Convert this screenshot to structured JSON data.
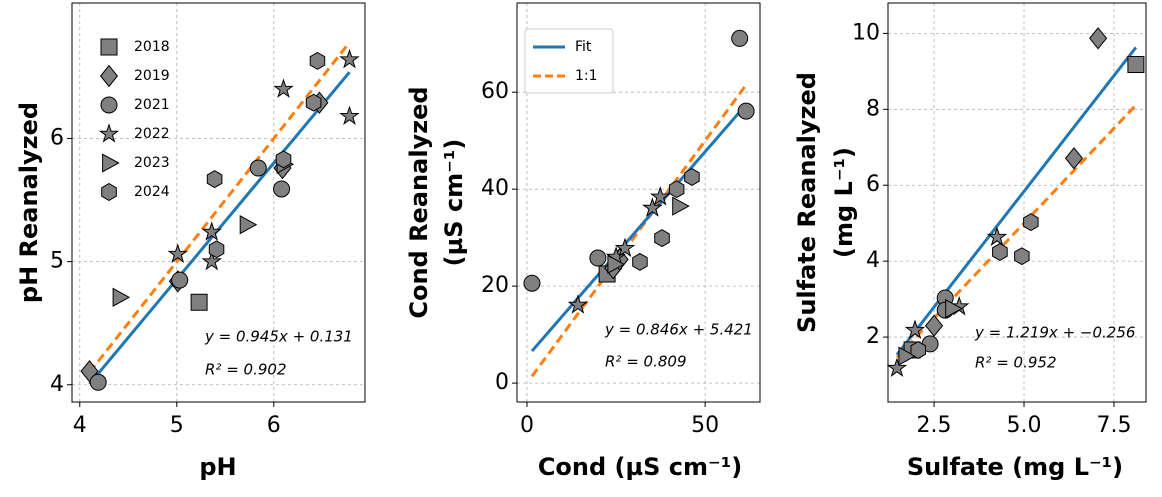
{
  "chart_data": [
    {
      "type": "scatter",
      "xlabel": "pH",
      "ylabel": [
        "pH Reanalyzed"
      ],
      "xlim": [
        3.92,
        6.94
      ],
      "ylim": [
        3.86,
        7.1
      ],
      "xticks": [
        4,
        5,
        6
      ],
      "yticks": [
        4,
        5,
        6
      ],
      "grid": true,
      "legend": "upper left",
      "marker_color": "#808080",
      "series": [
        {
          "name": "2018",
          "marker": "square",
          "x": [
            5.23
          ],
          "values": [
            4.67
          ]
        },
        {
          "name": "2019",
          "marker": "diamond",
          "x": [
            4.1,
            5.01,
            6.09,
            6.47
          ],
          "values": [
            4.11,
            4.84,
            5.76,
            6.29
          ]
        },
        {
          "name": "2021",
          "marker": "circle",
          "x": [
            4.19,
            5.03,
            5.84,
            6.08
          ],
          "values": [
            4.02,
            4.85,
            5.76,
            5.59
          ]
        },
        {
          "name": "2022",
          "marker": "star",
          "x": [
            5.01,
            5.36,
            5.36,
            6.1,
            6.78,
            6.78
          ],
          "values": [
            5.06,
            5.0,
            5.24,
            6.4,
            6.18,
            6.64
          ]
        },
        {
          "name": "2023",
          "marker": "triangle",
          "x": [
            4.41,
            5.72,
            6.1
          ],
          "values": [
            4.71,
            5.3,
            5.79
          ]
        },
        {
          "name": "2024",
          "marker": "hexagon",
          "x": [
            5.39,
            5.41,
            6.1,
            6.41,
            6.45
          ],
          "values": [
            5.67,
            5.1,
            5.83,
            6.29,
            6.63
          ]
        }
      ],
      "fit": {
        "slope": 0.945,
        "intercept": 0.131,
        "color": "#1f77b4"
      },
      "identity": {
        "color": "#ff7f0e"
      },
      "annotations": [
        "y = 0.945x + 0.131",
        "R² = 0.902"
      ]
    },
    {
      "type": "scatter",
      "xlabel": "Cond (µS cm⁻¹)",
      "ylabel": [
        "Cond Reanalyzed",
        "(µS cm⁻¹)"
      ],
      "xlim": [
        -2.8,
        65.4
      ],
      "ylim": [
        -3.9,
        78.4
      ],
      "xticks": [
        0,
        50
      ],
      "yticks": [
        0,
        20,
        40,
        60
      ],
      "grid": true,
      "marker_color": "#808080",
      "series": [
        {
          "marker": "square",
          "x": [
            22.5
          ],
          "values": [
            22.5
          ]
        },
        {
          "marker": "diamond",
          "x": [
            24.2,
            26
          ],
          "values": [
            23.7,
            25.5
          ]
        },
        {
          "marker": "circle",
          "x": [
            1.4,
            19.9,
            59.7,
            61.5
          ],
          "values": [
            20.6,
            25.8,
            71.1,
            56.1
          ]
        },
        {
          "marker": "star",
          "x": [
            14.3,
            25,
            35.2,
            37.4,
            27.5
          ],
          "values": [
            16.1,
            26,
            36.1,
            38.4,
            27.8
          ]
        },
        {
          "marker": "triangle",
          "x": [
            42.7,
            24.5
          ],
          "values": [
            36.5,
            24.5
          ]
        },
        {
          "marker": "hexagon",
          "x": [
            31.7,
            37.9,
            46.3,
            42
          ],
          "values": [
            25,
            29.9,
            42.5,
            40
          ]
        }
      ],
      "fit": {
        "slope": 0.846,
        "intercept": 5.421,
        "color": "#1f77b4"
      },
      "identity": {
        "color": "#ff7f0e"
      },
      "line_legend": [
        "Fit",
        "1:1"
      ],
      "annotations": [
        "y = 0.846x + 5.421",
        "R² = 0.809"
      ]
    },
    {
      "type": "scatter",
      "xlabel": "Sulfate (mg L⁻¹)",
      "ylabel": [
        "Sulfate Reanalyzed",
        "(mg L⁻¹)"
      ],
      "xlim": [
        1.22,
        8.39
      ],
      "ylim": [
        0.29,
        10.8
      ],
      "xticks": [
        2.5,
        {
          "value": 5,
          "label": "5.0"
        },
        7.5
      ],
      "yticks": [
        2,
        4,
        6,
        8,
        10
      ],
      "grid": true,
      "marker_color": "#808080",
      "series": [
        {
          "marker": "square",
          "x": [
            8.11,
            1.89
          ],
          "values": [
            9.18,
            1.66
          ]
        },
        {
          "marker": "diamond",
          "x": [
            7.06,
            6.39,
            2.5
          ],
          "values": [
            9.87,
            6.71,
            2.3
          ]
        },
        {
          "marker": "circle",
          "x": [
            2.81,
            2.81,
            2.39
          ],
          "values": [
            3.03,
            2.71,
            1.82
          ]
        },
        {
          "marker": "star",
          "x": [
            4.25,
            1.97,
            1.47,
            3.2
          ],
          "values": [
            4.63,
            2.18,
            1.18,
            2.8
          ]
        },
        {
          "marker": "triangle",
          "x": [
            3.0,
            1.7
          ],
          "values": [
            2.75,
            1.5
          ]
        },
        {
          "marker": "hexagon",
          "x": [
            5.19,
            4.33,
            4.94,
            2.06
          ],
          "values": [
            5.03,
            4.24,
            4.13,
            1.66
          ]
        }
      ],
      "fit": {
        "slope": 1.219,
        "intercept": -0.256,
        "color": "#1f77b4"
      },
      "identity": {
        "color": "#ff7f0e"
      },
      "annotations": [
        "y = 1.219x + −0.256",
        "R² = 0.952"
      ]
    }
  ]
}
